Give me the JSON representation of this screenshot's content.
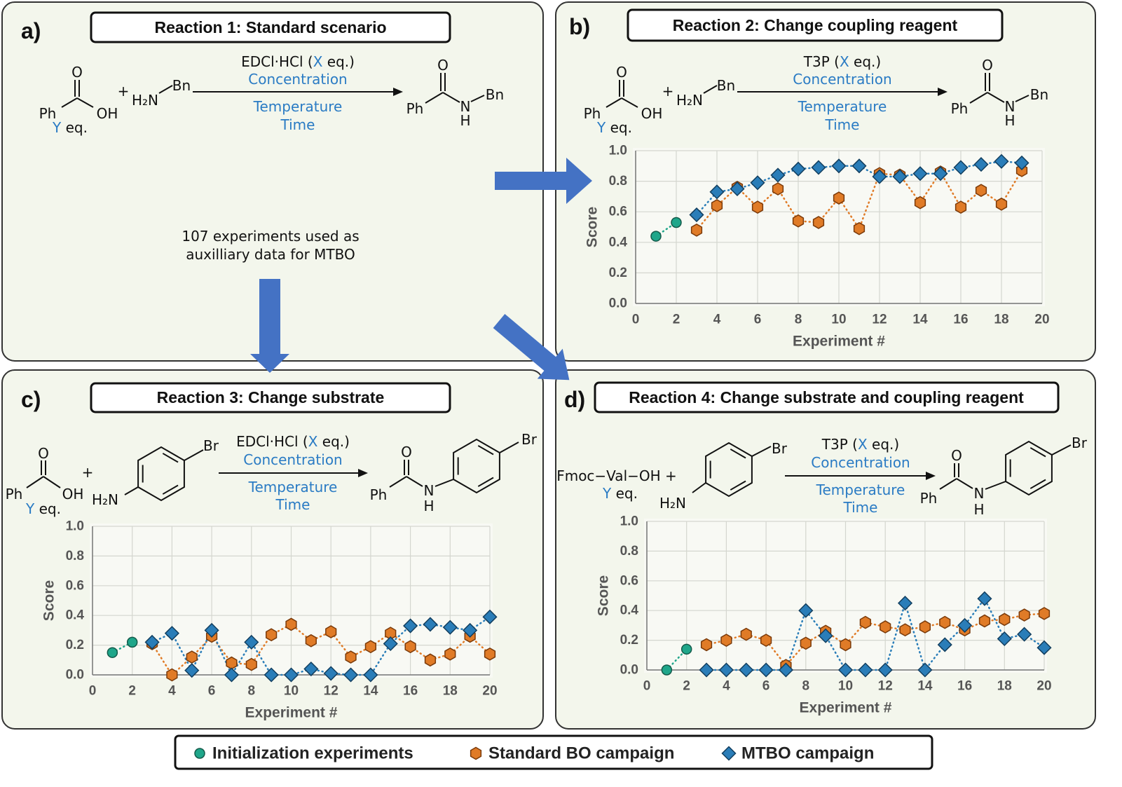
{
  "panels": [
    {
      "label": "a)",
      "title": "Reaction 1: Standard scenario"
    },
    {
      "label": "b)",
      "title": "Reaction 2: Change coupling reagent"
    },
    {
      "label": "c)",
      "title": "Reaction 3: Change substrate"
    },
    {
      "label": "d)",
      "title": "Reaction 4: Change substrate and coupling reagent"
    }
  ],
  "note": [
    "107 experiments used as",
    "auxilliary data for MTBO"
  ],
  "reactions": [
    {
      "reagent": [
        "EDCl·HCl (",
        "X",
        " eq.)"
      ],
      "conditions": [
        "Concentration",
        "Temperature",
        "Time"
      ],
      "equiv": [
        "Y",
        " eq."
      ],
      "atoms": [
        "O",
        "Ph",
        "OH",
        "+",
        "H₂N",
        "Bn",
        "O",
        "Ph",
        "N",
        "H",
        "Bn"
      ]
    },
    {
      "reagent": [
        "T3P (",
        "X",
        " eq.)"
      ],
      "conditions": [
        "Concentration",
        "Temperature",
        "Time"
      ],
      "equiv": [
        "Y",
        " eq."
      ],
      "atoms": [
        "O",
        "Ph",
        "OH",
        "+",
        "H₂N",
        "Bn",
        "O",
        "Ph",
        "N",
        "H",
        "Bn"
      ]
    },
    {
      "reagent": [
        "EDCl·HCl (",
        "X",
        " eq.)"
      ],
      "conditions": [
        "Concentration",
        "Temperature",
        "Time"
      ],
      "equiv": [
        "Y",
        " eq."
      ],
      "atoms": [
        "O",
        "Ph",
        "OH",
        "+",
        "Br",
        "H₂N",
        "O",
        "Ph",
        "N",
        "H",
        "Br"
      ]
    },
    {
      "reagent": [
        "T3P (",
        "X",
        " eq.)"
      ],
      "conditions": [
        "Concentration",
        "Temperature",
        "Time"
      ],
      "equiv": [
        "Y",
        " eq."
      ],
      "atoms": [
        "Fmoc−Val−OH +",
        "Br",
        "H₂N",
        "O",
        "Ph",
        "N",
        "H",
        "Br"
      ]
    }
  ],
  "chart_data": [
    {
      "type": "line",
      "xlabel": "Experiment #",
      "ylabel": "Score",
      "grid": true,
      "xlim": [
        0,
        20
      ],
      "ylim": [
        0,
        1
      ],
      "xticks": [
        0,
        2,
        4,
        6,
        8,
        10,
        12,
        14,
        16,
        18,
        20
      ],
      "yticks": [
        {
          "value": 0,
          "label": "0.0"
        },
        0.2,
        0.4,
        0.6,
        0.8,
        {
          "value": 1,
          "label": "1.0"
        }
      ],
      "series": [
        {
          "name": "Initialization experiments",
          "color": "#1fa68a",
          "marker": "circle",
          "x": [
            1,
            2
          ],
          "values": [
            0.44,
            0.53
          ]
        },
        {
          "name": "Standard BO campaign",
          "color": "#e07b27",
          "marker": "hexagon",
          "x": [
            3,
            4,
            5,
            6,
            7,
            8,
            9,
            10,
            11,
            12,
            13,
            14,
            15,
            16,
            17,
            18,
            19
          ],
          "values": [
            0.48,
            0.64,
            0.76,
            0.63,
            0.75,
            0.54,
            0.53,
            0.69,
            0.49,
            0.85,
            0.84,
            0.66,
            0.86,
            0.63,
            0.74,
            0.65,
            0.87
          ]
        },
        {
          "name": "MTBO campaign",
          "color": "#2a7db8",
          "marker": "diamond",
          "x": [
            3,
            4,
            5,
            6,
            7,
            8,
            9,
            10,
            11,
            12,
            13,
            14,
            15,
            16,
            17,
            18,
            19
          ],
          "values": [
            0.58,
            0.73,
            0.75,
            0.79,
            0.84,
            0.88,
            0.89,
            0.9,
            0.9,
            0.83,
            0.83,
            0.85,
            0.85,
            0.89,
            0.91,
            0.93,
            0.92
          ]
        }
      ]
    },
    {
      "type": "line",
      "xlabel": "Experiment #",
      "ylabel": "Score",
      "grid": true,
      "xlim": [
        0,
        20
      ],
      "ylim": [
        0,
        1
      ],
      "xticks": [
        0,
        2,
        4,
        6,
        8,
        10,
        12,
        14,
        16,
        18,
        20
      ],
      "yticks": [
        {
          "value": 0,
          "label": "0.0"
        },
        0.2,
        0.4,
        0.6,
        0.8,
        {
          "value": 1,
          "label": "1.0"
        }
      ],
      "series": [
        {
          "color": "#1fa68a",
          "marker": "circle",
          "x": [
            1,
            2
          ],
          "values": [
            0.15,
            0.22
          ]
        },
        {
          "color": "#e07b27",
          "marker": "hexagon",
          "x": [
            3,
            4,
            5,
            6,
            7,
            8,
            9,
            10,
            11,
            12,
            13,
            14,
            15,
            16,
            17,
            18,
            19,
            20
          ],
          "values": [
            0.21,
            0,
            0.12,
            0.26,
            0.08,
            0.07,
            0.27,
            0.34,
            0.23,
            0.29,
            0.12,
            0.19,
            0.28,
            0.19,
            0.1,
            0.14,
            0.26,
            0.14
          ]
        },
        {
          "color": "#2a7db8",
          "marker": "diamond",
          "x": [
            3,
            4,
            5,
            6,
            7,
            8,
            9,
            10,
            11,
            12,
            13,
            14,
            15,
            16,
            17,
            18,
            19,
            20
          ],
          "values": [
            0.22,
            0.28,
            0.03,
            0.3,
            0,
            0.22,
            0,
            0,
            0.04,
            0.01,
            0,
            0,
            0.21,
            0.33,
            0.34,
            0.32,
            0.3,
            0.39
          ]
        }
      ]
    },
    {
      "type": "line",
      "xlabel": "Experiment #",
      "ylabel": "Score",
      "grid": true,
      "xlim": [
        0,
        20
      ],
      "ylim": [
        0,
        1
      ],
      "xticks": [
        0,
        2,
        4,
        6,
        8,
        10,
        12,
        14,
        16,
        18,
        20
      ],
      "yticks": [
        {
          "value": 0,
          "label": "0.0"
        },
        0.2,
        0.4,
        0.6,
        0.8,
        {
          "value": 1,
          "label": "1.0"
        }
      ],
      "series": [
        {
          "color": "#1fa68a",
          "marker": "circle",
          "x": [
            1,
            2
          ],
          "values": [
            0,
            0.14
          ]
        },
        {
          "color": "#e07b27",
          "marker": "hexagon",
          "x": [
            3,
            4,
            5,
            6,
            7,
            8,
            9,
            10,
            11,
            12,
            13,
            14,
            15,
            16,
            17,
            18,
            19,
            20
          ],
          "values": [
            0.17,
            0.2,
            0.24,
            0.2,
            0.03,
            0.18,
            0.26,
            0.17,
            0.32,
            0.29,
            0.27,
            0.29,
            0.32,
            0.27,
            0.33,
            0.34,
            0.37,
            0.38
          ]
        },
        {
          "color": "#2a7db8",
          "marker": "diamond",
          "x": [
            3,
            4,
            5,
            6,
            7,
            8,
            9,
            10,
            11,
            12,
            13,
            14,
            15,
            16,
            17,
            18,
            19,
            20
          ],
          "values": [
            0,
            0,
            0,
            0,
            0,
            0.4,
            0.23,
            0,
            0,
            0,
            0.45,
            0,
            0.17,
            0.3,
            0.48,
            0.21,
            0.24,
            0.15
          ]
        }
      ]
    }
  ]
}
